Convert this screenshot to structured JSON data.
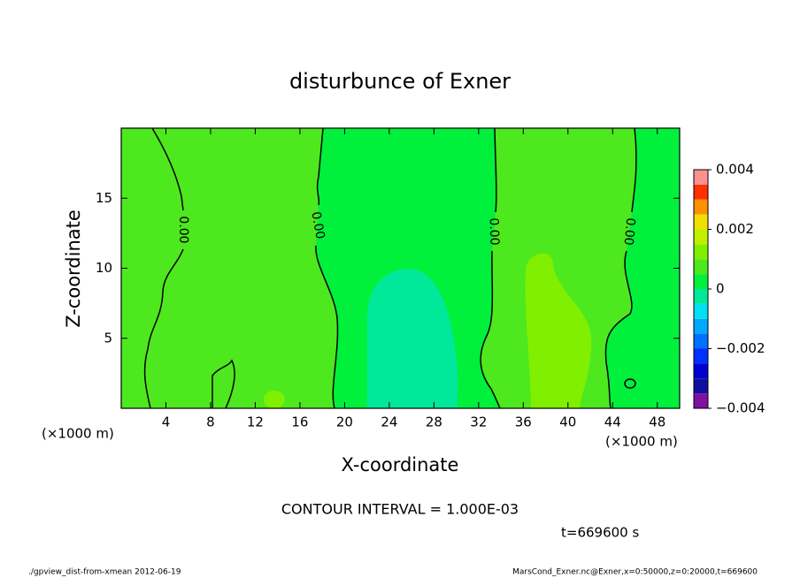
{
  "chart_data": {
    "type": "contour",
    "title": "disturbunce of Exner",
    "x_label": "X-coordinate",
    "y_label": "Z-coordinate",
    "x_unit": "(×1000 m)",
    "xlim": [
      0,
      50
    ],
    "xticks": [
      4,
      8,
      12,
      16,
      20,
      24,
      28,
      32,
      36,
      40,
      44,
      48
    ],
    "ylim": [
      0,
      20
    ],
    "yticks": [
      5,
      10,
      15
    ],
    "contour_label": "0.00",
    "levels": [
      -0.004,
      -0.0035,
      -0.003,
      -0.0025,
      -0.002,
      -0.0015,
      -0.001,
      -0.0005,
      0,
      0.0005,
      0.001,
      0.0015,
      0.002,
      0.0025,
      0.003,
      0.0035,
      0.004
    ],
    "colors": [
      "#8010a0",
      "#1010a0",
      "#0000d0",
      "#0030ff",
      "#0070ff",
      "#00a8ff",
      "#00e0f0",
      "#00e89a",
      "#00f03c",
      "#4ee81e",
      "#80f000",
      "#c0f000",
      "#f0e000",
      "#ff9000",
      "#ff3000",
      "#ff9090"
    ],
    "colorbar_ticks": [
      0.004,
      0.002,
      0,
      {
        "value": -0.002,
        "label": "−0.002"
      },
      {
        "value": -0.004,
        "label": "−0.004"
      }
    ],
    "contour_interval": "CONTOUR INTERVAL = 1.000E-03",
    "time_label": "t=669600 s",
    "footer_left": "./gpview_dist-from-xmean  2012-06-19",
    "footer_right": "MarsCond_Exner.nc@Exner,x=0:50000,z=0:20000,t=669600"
  }
}
